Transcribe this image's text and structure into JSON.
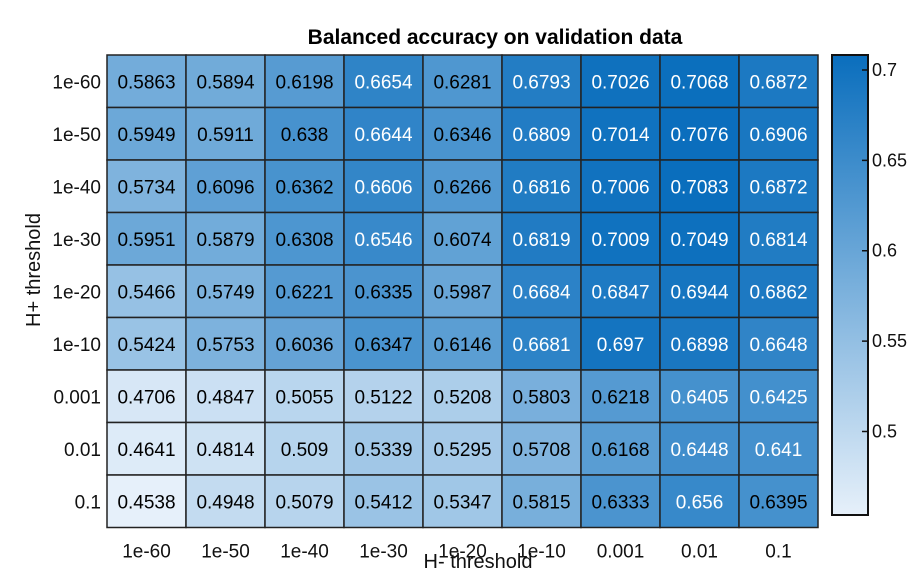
{
  "chart_data": {
    "type": "heatmap",
    "title": "Balanced accuracy on validation data",
    "xlabel": "H- threshold",
    "ylabel": "H+ threshold",
    "x_categories": [
      "1e-60",
      "1e-50",
      "1e-40",
      "1e-30",
      "1e-20",
      "1e-10",
      "0.001",
      "0.01",
      "0.1"
    ],
    "y_categories": [
      "1e-60",
      "1e-50",
      "1e-40",
      "1e-30",
      "1e-20",
      "1e-10",
      "0.001",
      "0.01",
      "0.1"
    ],
    "values": [
      [
        "0.5863",
        "0.5894",
        "0.6198",
        "0.6654",
        "0.6281",
        "0.6793",
        "0.7026",
        "0.7068",
        "0.6872"
      ],
      [
        "0.5949",
        "0.5911",
        "0.638",
        "0.6644",
        "0.6346",
        "0.6809",
        "0.7014",
        "0.7076",
        "0.6906"
      ],
      [
        "0.5734",
        "0.6096",
        "0.6362",
        "0.6606",
        "0.6266",
        "0.6816",
        "0.7006",
        "0.7083",
        "0.6872"
      ],
      [
        "0.5951",
        "0.5879",
        "0.6308",
        "0.6546",
        "0.6074",
        "0.6819",
        "0.7009",
        "0.7049",
        "0.6814"
      ],
      [
        "0.5466",
        "0.5749",
        "0.6221",
        "0.6335",
        "0.5987",
        "0.6684",
        "0.6847",
        "0.6944",
        "0.6862"
      ],
      [
        "0.5424",
        "0.5753",
        "0.6036",
        "0.6347",
        "0.6146",
        "0.6681",
        "0.697",
        "0.6898",
        "0.6648"
      ],
      [
        "0.4706",
        "0.4847",
        "0.5055",
        "0.5122",
        "0.5208",
        "0.5803",
        "0.6218",
        "0.6405",
        "0.6425"
      ],
      [
        "0.4641",
        "0.4814",
        "0.509",
        "0.5339",
        "0.5295",
        "0.5708",
        "0.6168",
        "0.6448",
        "0.641"
      ],
      [
        "0.4538",
        "0.4948",
        "0.5079",
        "0.5412",
        "0.5347",
        "0.5815",
        "0.6333",
        "0.656",
        "0.6395"
      ]
    ],
    "colorbar": {
      "range": [
        0.4538,
        0.7083
      ],
      "ticks": [
        "0.5",
        "0.55",
        "0.6",
        "0.65",
        "0.7"
      ],
      "low_color": "#e6f0fa",
      "high_color": "#0a6ebd"
    },
    "cell_border_color": "#222222",
    "text_dark_color": "#000000",
    "text_light_color": "#ffffff",
    "light_text_threshold": 0.64
  }
}
